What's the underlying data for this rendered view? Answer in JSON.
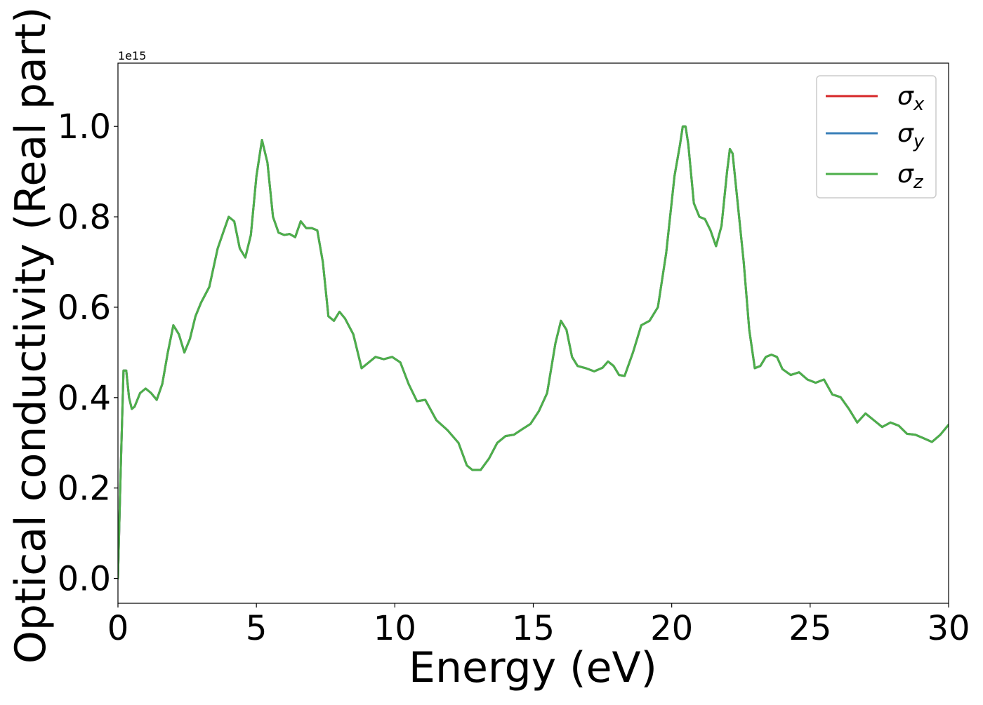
{
  "chart_data": {
    "type": "line",
    "title": "",
    "xlabel": "Energy (eV)",
    "ylabel": "Optical conductivity (Real part)",
    "y_offset_label": "1e15",
    "xlim": [
      0,
      30
    ],
    "ylim": [
      -0.055,
      1.14
    ],
    "xticks": [
      0,
      5,
      10,
      15,
      20,
      25,
      30
    ],
    "xtick_labels": [
      "0",
      "5",
      "10",
      "15",
      "20",
      "25",
      "30"
    ],
    "yticks": [
      0.0,
      0.2,
      0.4,
      0.6,
      0.8,
      1.0
    ],
    "ytick_labels": [
      "0.0",
      "0.2",
      "0.4",
      "0.6",
      "0.8",
      "1.0"
    ],
    "grid": false,
    "legend_position": "top-right",
    "legend": [
      {
        "symbol": "σ",
        "subscript": "x",
        "color": "#d62728"
      },
      {
        "symbol": "σ",
        "subscript": "y",
        "color": "#3a7fb8"
      },
      {
        "symbol": "σ",
        "subscript": "z",
        "color": "#4daf4a"
      }
    ],
    "shared_curve_note_units": "1e15",
    "x": [
      0,
      0.1,
      0.2,
      0.3,
      0.4,
      0.5,
      0.6,
      0.8,
      1.0,
      1.2,
      1.4,
      1.6,
      1.8,
      2.0,
      2.2,
      2.4,
      2.6,
      2.8,
      3.0,
      3.3,
      3.6,
      3.8,
      4.0,
      4.2,
      4.4,
      4.6,
      4.8,
      5.0,
      5.2,
      5.4,
      5.6,
      5.8,
      6.0,
      6.2,
      6.4,
      6.6,
      6.8,
      7.0,
      7.2,
      7.4,
      7.6,
      7.8,
      8.0,
      8.2,
      8.5,
      8.8,
      9.0,
      9.3,
      9.6,
      9.9,
      10.2,
      10.5,
      10.8,
      11.1,
      11.5,
      11.9,
      12.3,
      12.6,
      12.8,
      13.1,
      13.4,
      13.7,
      14.0,
      14.3,
      14.6,
      14.9,
      15.2,
      15.5,
      15.8,
      16.0,
      16.2,
      16.4,
      16.6,
      16.9,
      17.2,
      17.5,
      17.7,
      17.9,
      18.1,
      18.3,
      18.6,
      18.9,
      19.2,
      19.5,
      19.8,
      20.1,
      20.3,
      20.4,
      20.5,
      20.6,
      20.8,
      21.0,
      21.2,
      21.4,
      21.6,
      21.8,
      22.0,
      22.1,
      22.2,
      22.4,
      22.6,
      22.8,
      23.0,
      23.2,
      23.4,
      23.6,
      23.8,
      24.0,
      24.3,
      24.6,
      24.9,
      25.2,
      25.5,
      25.8,
      26.1,
      26.4,
      26.7,
      27.0,
      27.3,
      27.6,
      27.9,
      28.2,
      28.5,
      28.8,
      29.1,
      29.4,
      29.7,
      30.0
    ],
    "series": [
      {
        "name": "σx",
        "values": [
          0.0,
          0.24,
          0.46,
          0.46,
          0.4,
          0.375,
          0.38,
          0.41,
          0.42,
          0.41,
          0.395,
          0.43,
          0.5,
          0.56,
          0.54,
          0.5,
          0.53,
          0.58,
          0.61,
          0.645,
          0.73,
          0.765,
          0.8,
          0.79,
          0.73,
          0.71,
          0.76,
          0.89,
          0.97,
          0.92,
          0.8,
          0.765,
          0.76,
          0.762,
          0.755,
          0.79,
          0.775,
          0.775,
          0.77,
          0.7,
          0.58,
          0.57,
          0.59,
          0.575,
          0.54,
          0.465,
          0.475,
          0.49,
          0.485,
          0.49,
          0.478,
          0.43,
          0.392,
          0.395,
          0.35,
          0.328,
          0.3,
          0.25,
          0.24,
          0.24,
          0.265,
          0.3,
          0.315,
          0.318,
          0.33,
          0.342,
          0.37,
          0.41,
          0.52,
          0.57,
          0.55,
          0.49,
          0.47,
          0.465,
          0.458,
          0.466,
          0.48,
          0.47,
          0.45,
          0.448,
          0.5,
          0.56,
          0.57,
          0.6,
          0.72,
          0.89,
          0.96,
          1.0,
          1.0,
          0.96,
          0.83,
          0.8,
          0.795,
          0.77,
          0.735,
          0.78,
          0.9,
          0.95,
          0.94,
          0.82,
          0.7,
          0.55,
          0.465,
          0.47,
          0.49,
          0.495,
          0.49,
          0.463,
          0.45,
          0.456,
          0.44,
          0.433,
          0.44,
          0.407,
          0.401,
          0.375,
          0.345,
          0.365,
          0.35,
          0.335,
          0.345,
          0.338,
          0.32,
          0.318,
          0.31,
          0.302,
          0.318,
          0.34
        ]
      },
      {
        "name": "σy",
        "values": [
          0.0,
          0.24,
          0.46,
          0.46,
          0.4,
          0.375,
          0.38,
          0.41,
          0.42,
          0.41,
          0.395,
          0.43,
          0.5,
          0.56,
          0.54,
          0.5,
          0.53,
          0.58,
          0.61,
          0.645,
          0.73,
          0.765,
          0.8,
          0.79,
          0.73,
          0.71,
          0.76,
          0.89,
          0.97,
          0.92,
          0.8,
          0.765,
          0.76,
          0.762,
          0.755,
          0.79,
          0.775,
          0.775,
          0.77,
          0.7,
          0.58,
          0.57,
          0.59,
          0.575,
          0.54,
          0.465,
          0.475,
          0.49,
          0.485,
          0.49,
          0.478,
          0.43,
          0.392,
          0.395,
          0.35,
          0.328,
          0.3,
          0.25,
          0.24,
          0.24,
          0.265,
          0.3,
          0.315,
          0.318,
          0.33,
          0.342,
          0.37,
          0.41,
          0.52,
          0.57,
          0.55,
          0.49,
          0.47,
          0.465,
          0.458,
          0.466,
          0.48,
          0.47,
          0.45,
          0.448,
          0.5,
          0.56,
          0.57,
          0.6,
          0.72,
          0.89,
          0.96,
          1.0,
          1.0,
          0.96,
          0.83,
          0.8,
          0.795,
          0.77,
          0.735,
          0.78,
          0.9,
          0.95,
          0.94,
          0.82,
          0.7,
          0.55,
          0.465,
          0.47,
          0.49,
          0.495,
          0.49,
          0.463,
          0.45,
          0.456,
          0.44,
          0.433,
          0.44,
          0.407,
          0.401,
          0.375,
          0.345,
          0.365,
          0.35,
          0.335,
          0.345,
          0.338,
          0.32,
          0.318,
          0.31,
          0.302,
          0.318,
          0.34
        ]
      },
      {
        "name": "σz",
        "values": [
          0.0,
          0.24,
          0.46,
          0.46,
          0.4,
          0.375,
          0.38,
          0.41,
          0.42,
          0.41,
          0.395,
          0.43,
          0.5,
          0.56,
          0.54,
          0.5,
          0.53,
          0.58,
          0.61,
          0.645,
          0.73,
          0.765,
          0.8,
          0.79,
          0.73,
          0.71,
          0.76,
          0.89,
          0.97,
          0.92,
          0.8,
          0.765,
          0.76,
          0.762,
          0.755,
          0.79,
          0.775,
          0.775,
          0.77,
          0.7,
          0.58,
          0.57,
          0.59,
          0.575,
          0.54,
          0.465,
          0.475,
          0.49,
          0.485,
          0.49,
          0.478,
          0.43,
          0.392,
          0.395,
          0.35,
          0.328,
          0.3,
          0.25,
          0.24,
          0.24,
          0.265,
          0.3,
          0.315,
          0.318,
          0.33,
          0.342,
          0.37,
          0.41,
          0.52,
          0.57,
          0.55,
          0.49,
          0.47,
          0.465,
          0.458,
          0.466,
          0.48,
          0.47,
          0.45,
          0.448,
          0.5,
          0.56,
          0.57,
          0.6,
          0.72,
          0.89,
          0.96,
          1.0,
          1.0,
          0.96,
          0.83,
          0.8,
          0.795,
          0.77,
          0.735,
          0.78,
          0.9,
          0.95,
          0.94,
          0.82,
          0.7,
          0.55,
          0.465,
          0.47,
          0.49,
          0.495,
          0.49,
          0.463,
          0.45,
          0.456,
          0.44,
          0.433,
          0.44,
          0.407,
          0.401,
          0.375,
          0.345,
          0.365,
          0.35,
          0.335,
          0.345,
          0.338,
          0.32,
          0.318,
          0.31,
          0.302,
          0.318,
          0.34
        ]
      }
    ]
  }
}
